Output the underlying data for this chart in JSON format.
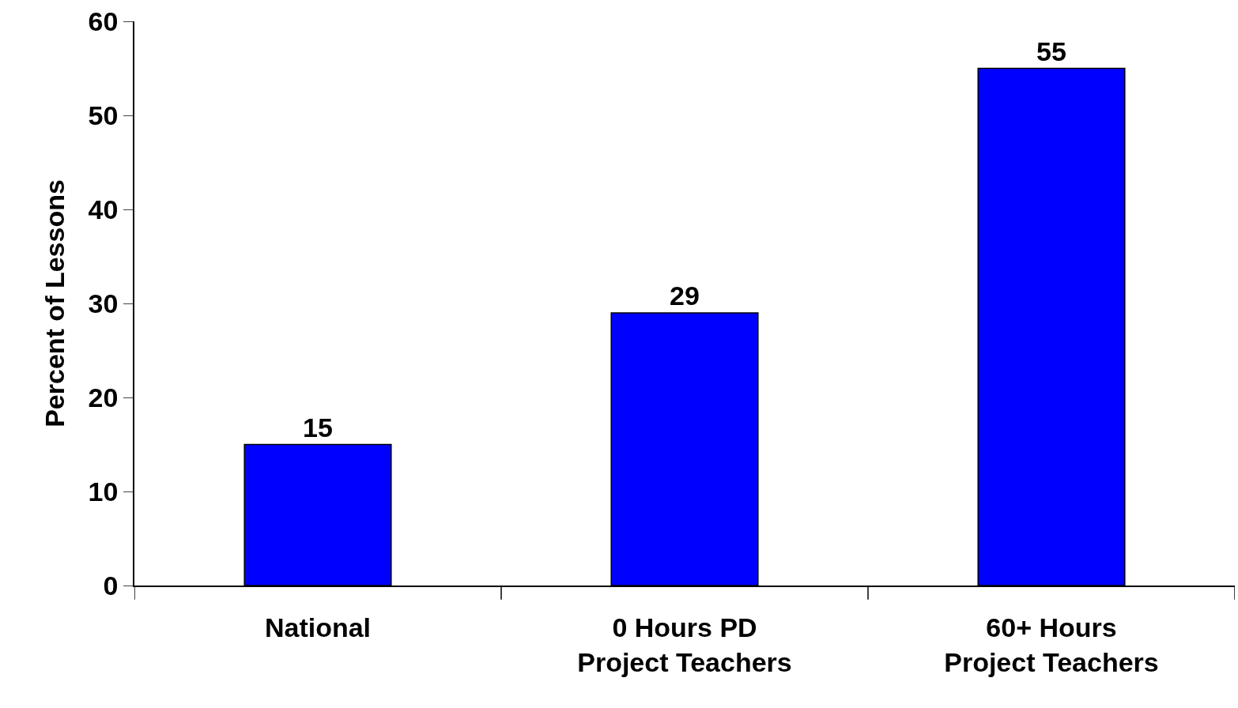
{
  "chart_data": {
    "type": "bar",
    "ylabel": "Percent of Lessons",
    "categories": [
      "National",
      "0 Hours PD\nProject Teachers",
      "60+ Hours\nProject Teachers"
    ],
    "values": [
      15,
      29,
      55
    ],
    "color": "#0000ff",
    "ylim": [
      0,
      60
    ],
    "yticks": [
      0,
      10,
      20,
      30,
      40,
      50,
      60
    ],
    "data_labels": true
  }
}
